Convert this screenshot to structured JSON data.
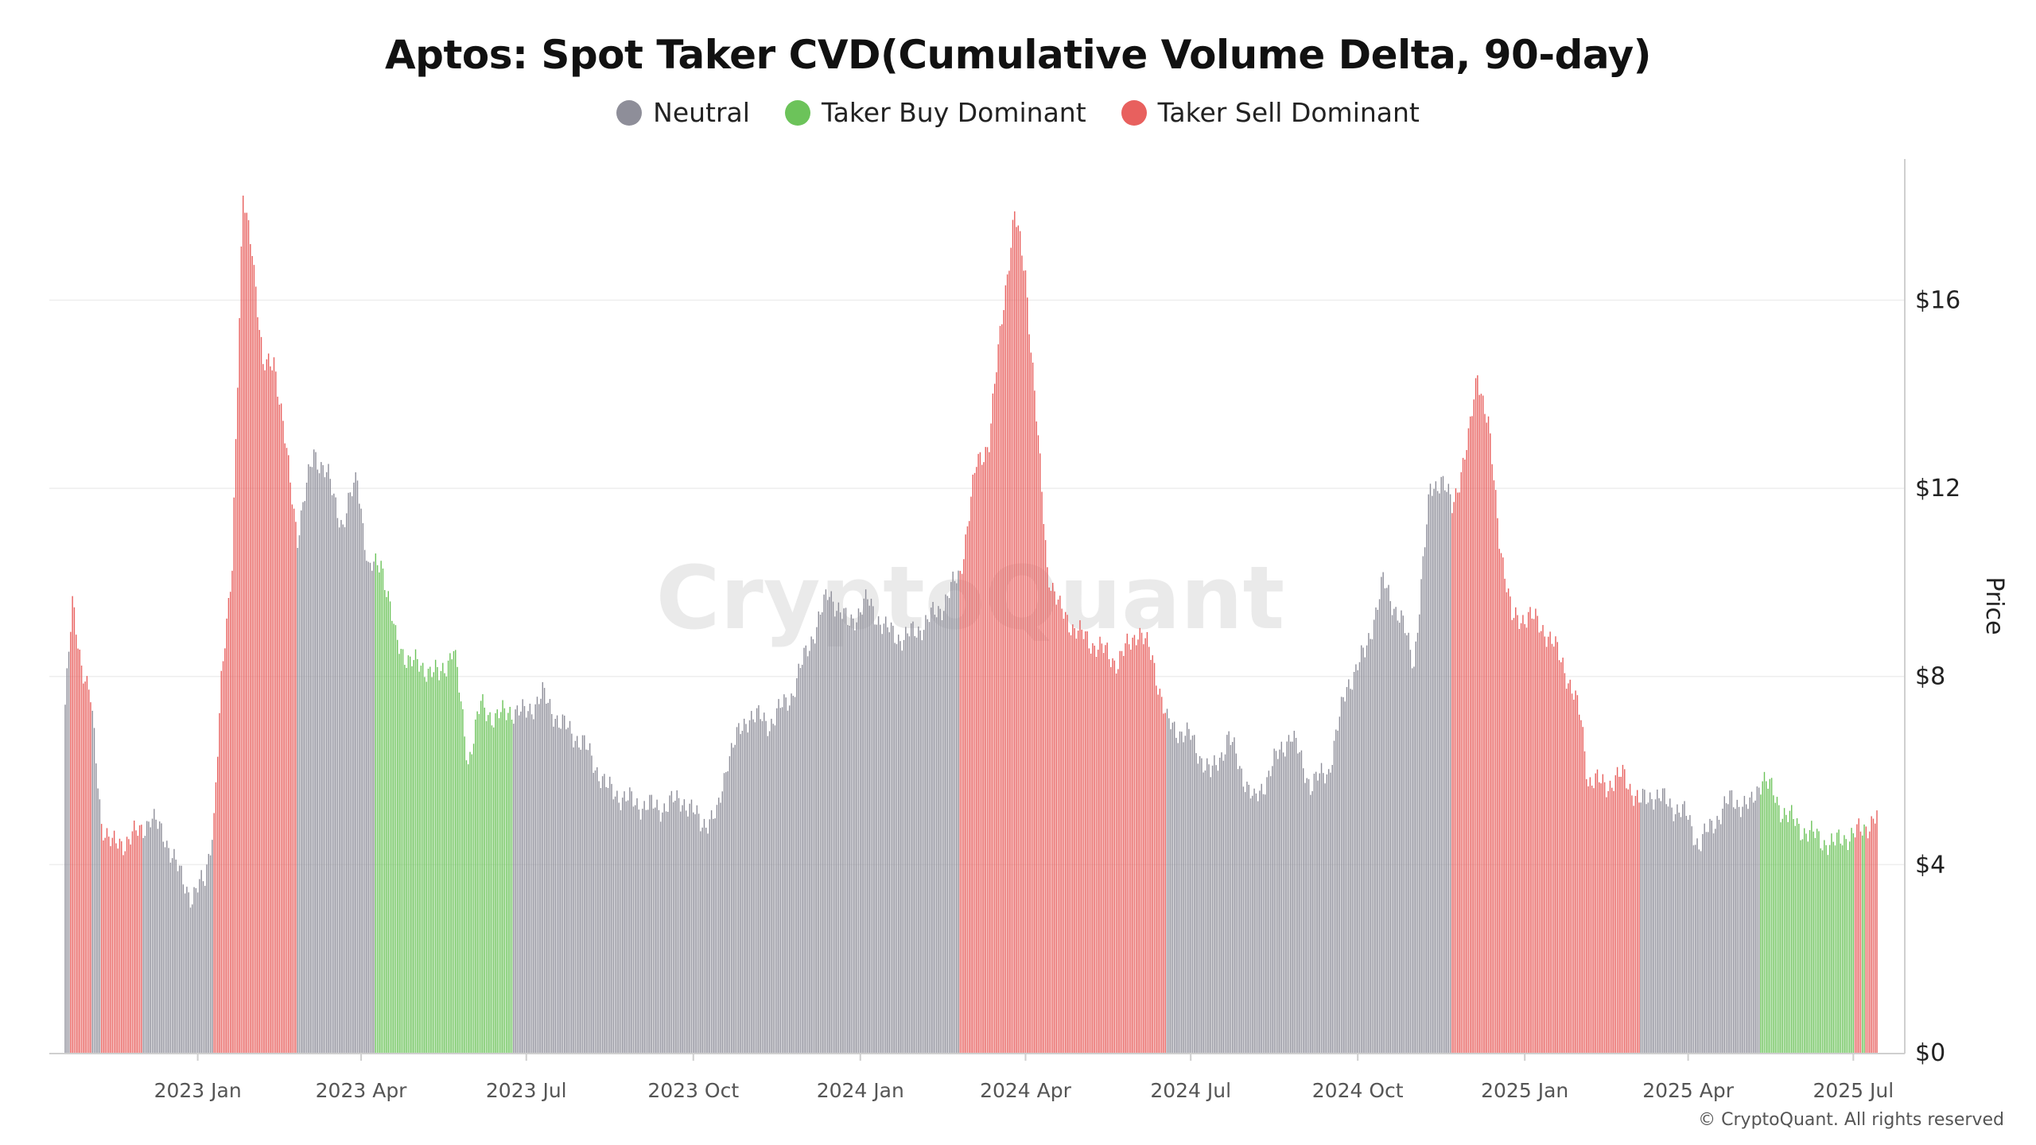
{
  "chart_data": {
    "type": "bar",
    "title": "Aptos: Spot Taker CVD(Cumulative Volume Delta, 90-day)",
    "ylabel": "Price",
    "xlabel": "",
    "ylim": [
      0,
      19
    ],
    "yticks": [
      {
        "value": 0,
        "label": "$0"
      },
      {
        "value": 4,
        "label": "$4"
      },
      {
        "value": 8,
        "label": "$8"
      },
      {
        "value": 12,
        "label": "$12"
      },
      {
        "value": 16,
        "label": "$16"
      }
    ],
    "x_range": [
      "2022-10-20",
      "2025-07-14"
    ],
    "xticks": [
      {
        "date": "2023-01-01",
        "label": "2023 Jan"
      },
      {
        "date": "2023-04-01",
        "label": "2023 Apr"
      },
      {
        "date": "2023-07-01",
        "label": "2023 Jul"
      },
      {
        "date": "2023-10-01",
        "label": "2023 Oct"
      },
      {
        "date": "2024-01-01",
        "label": "2024 Jan"
      },
      {
        "date": "2024-04-01",
        "label": "2024 Apr"
      },
      {
        "date": "2024-07-01",
        "label": "2024 Jul"
      },
      {
        "date": "2024-10-01",
        "label": "2024 Oct"
      },
      {
        "date": "2025-01-01",
        "label": "2025 Jan"
      },
      {
        "date": "2025-04-01",
        "label": "2025 Apr"
      },
      {
        "date": "2025-07-01",
        "label": "2025 Jul"
      }
    ],
    "legend": [
      {
        "key": "neutral",
        "label": "Neutral",
        "color": "#8e8e99"
      },
      {
        "key": "buy",
        "label": "Taker Buy Dominant",
        "color": "#6cc35a"
      },
      {
        "key": "sell",
        "label": "Taker Sell Dominant",
        "color": "#e8605e"
      }
    ],
    "legend_position": "top-center",
    "price_points": [
      [
        "2022-10-20",
        7.4
      ],
      [
        "2022-10-24",
        9.5
      ],
      [
        "2022-10-29",
        8.3
      ],
      [
        "2022-11-03",
        7.5
      ],
      [
        "2022-11-09",
        4.9
      ],
      [
        "2022-11-15",
        4.4
      ],
      [
        "2022-11-22",
        4.5
      ],
      [
        "2022-11-30",
        4.7
      ],
      [
        "2022-12-06",
        5.0
      ],
      [
        "2022-12-14",
        4.6
      ],
      [
        "2022-12-22",
        3.8
      ],
      [
        "2022-12-29",
        3.3
      ],
      [
        "2023-01-05",
        3.7
      ],
      [
        "2023-01-10",
        5.0
      ],
      [
        "2023-01-14",
        7.8
      ],
      [
        "2023-01-20",
        10.5
      ],
      [
        "2023-01-26",
        18.1
      ],
      [
        "2023-01-31",
        17.2
      ],
      [
        "2023-02-06",
        14.5
      ],
      [
        "2023-02-12",
        14.8
      ],
      [
        "2023-02-18",
        13.0
      ],
      [
        "2023-02-25",
        11.0
      ],
      [
        "2023-03-06",
        12.8
      ],
      [
        "2023-03-14",
        12.2
      ],
      [
        "2023-03-22",
        11.2
      ],
      [
        "2023-03-30",
        12.3
      ],
      [
        "2023-04-05",
        10.2
      ],
      [
        "2023-04-12",
        10.5
      ],
      [
        "2023-04-20",
        8.8
      ],
      [
        "2023-04-28",
        8.3
      ],
      [
        "2023-05-06",
        8.2
      ],
      [
        "2023-05-14",
        8.0
      ],
      [
        "2023-05-22",
        8.6
      ],
      [
        "2023-05-30",
        6.2
      ],
      [
        "2023-06-06",
        7.4
      ],
      [
        "2023-06-14",
        7.1
      ],
      [
        "2023-06-22",
        7.3
      ],
      [
        "2023-06-30",
        7.2
      ],
      [
        "2023-07-10",
        7.6
      ],
      [
        "2023-07-20",
        7.0
      ],
      [
        "2023-08-01",
        6.6
      ],
      [
        "2023-08-15",
        5.6
      ],
      [
        "2023-08-30",
        5.3
      ],
      [
        "2023-09-12",
        5.2
      ],
      [
        "2023-09-25",
        5.4
      ],
      [
        "2023-10-05",
        4.9
      ],
      [
        "2023-10-14",
        5.0
      ],
      [
        "2023-10-20",
        6.3
      ],
      [
        "2023-11-01",
        7.2
      ],
      [
        "2023-11-12",
        7.0
      ],
      [
        "2023-11-24",
        7.6
      ],
      [
        "2023-12-05",
        8.8
      ],
      [
        "2023-12-15",
        9.8
      ],
      [
        "2023-12-25",
        9.1
      ],
      [
        "2024-01-05",
        9.6
      ],
      [
        "2024-01-15",
        9.0
      ],
      [
        "2024-01-25",
        8.8
      ],
      [
        "2024-02-05",
        9.1
      ],
      [
        "2024-02-15",
        9.5
      ],
      [
        "2024-02-25",
        10.2
      ],
      [
        "2024-03-05",
        12.5
      ],
      [
        "2024-03-12",
        13.0
      ],
      [
        "2024-03-20",
        16.0
      ],
      [
        "2024-03-26",
        17.8
      ],
      [
        "2024-04-01",
        16.6
      ],
      [
        "2024-04-07",
        13.5
      ],
      [
        "2024-04-13",
        10.3
      ],
      [
        "2024-04-20",
        9.4
      ],
      [
        "2024-05-01",
        8.9
      ],
      [
        "2024-05-12",
        8.6
      ],
      [
        "2024-05-22",
        8.3
      ],
      [
        "2024-06-02",
        9.0
      ],
      [
        "2024-06-10",
        8.4
      ],
      [
        "2024-06-18",
        7.0
      ],
      [
        "2024-07-01",
        6.7
      ],
      [
        "2024-07-12",
        5.9
      ],
      [
        "2024-07-22",
        6.7
      ],
      [
        "2024-08-05",
        5.3
      ],
      [
        "2024-08-15",
        6.1
      ],
      [
        "2024-08-25",
        6.8
      ],
      [
        "2024-09-05",
        5.7
      ],
      [
        "2024-09-15",
        6.0
      ],
      [
        "2024-09-25",
        7.8
      ],
      [
        "2024-10-05",
        8.5
      ],
      [
        "2024-10-15",
        10.0
      ],
      [
        "2024-10-25",
        9.2
      ],
      [
        "2024-11-01",
        8.3
      ],
      [
        "2024-11-10",
        12.0
      ],
      [
        "2024-11-16",
        12.2
      ],
      [
        "2024-11-22",
        11.6
      ],
      [
        "2024-12-01",
        13.0
      ],
      [
        "2024-12-06",
        14.5
      ],
      [
        "2024-12-12",
        13.3
      ],
      [
        "2024-12-18",
        11.0
      ],
      [
        "2024-12-25",
        9.2
      ],
      [
        "2025-01-03",
        9.3
      ],
      [
        "2025-01-12",
        9.0
      ],
      [
        "2025-01-22",
        8.3
      ],
      [
        "2025-02-01",
        7.1
      ],
      [
        "2025-02-05",
        5.8
      ],
      [
        "2025-02-15",
        5.7
      ],
      [
        "2025-02-25",
        5.9
      ],
      [
        "2025-03-05",
        5.3
      ],
      [
        "2025-03-12",
        5.5
      ],
      [
        "2025-03-22",
        5.3
      ],
      [
        "2025-04-01",
        5.0
      ],
      [
        "2025-04-07",
        4.4
      ],
      [
        "2025-04-15",
        4.9
      ],
      [
        "2025-04-25",
        5.4
      ],
      [
        "2025-05-05",
        5.2
      ],
      [
        "2025-05-12",
        5.9
      ],
      [
        "2025-05-22",
        5.2
      ],
      [
        "2025-06-01",
        4.8
      ],
      [
        "2025-06-10",
        4.6
      ],
      [
        "2025-06-20",
        4.4
      ],
      [
        "2025-06-25",
        4.6
      ],
      [
        "2025-07-01",
        4.6
      ],
      [
        "2025-07-07",
        4.8
      ],
      [
        "2025-07-14",
        5.0
      ]
    ],
    "signal_regimes": [
      [
        "2022-10-20",
        "neutral"
      ],
      [
        "2022-10-23",
        "sell"
      ],
      [
        "2022-11-04",
        "neutral"
      ],
      [
        "2022-11-09",
        "sell"
      ],
      [
        "2022-12-02",
        "neutral"
      ],
      [
        "2023-01-10",
        "sell"
      ],
      [
        "2023-02-25",
        "neutral"
      ],
      [
        "2023-04-09",
        "buy"
      ],
      [
        "2023-06-24",
        "neutral"
      ],
      [
        "2024-02-25",
        "sell"
      ],
      [
        "2024-06-18",
        "neutral"
      ],
      [
        "2024-11-22",
        "sell"
      ],
      [
        "2025-03-06",
        "neutral"
      ],
      [
        "2025-05-11",
        "buy"
      ],
      [
        "2025-07-02",
        "sell"
      ],
      [
        "2025-07-06",
        "buy"
      ],
      [
        "2025-07-08",
        "sell"
      ]
    ]
  },
  "watermark": "CryptoQuant",
  "copyright": "© CryptoQuant. All rights reserved"
}
